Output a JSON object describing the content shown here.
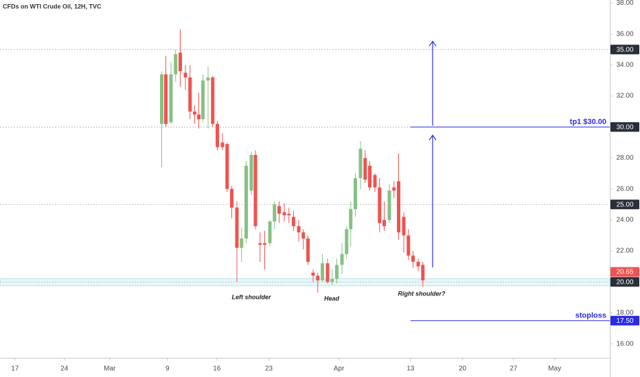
{
  "chart_data": {
    "type": "candlestick",
    "title": "CFDs on WTI Crude Oil, 12H, TVC",
    "up_color": "#86c184",
    "down_color": "#ef5350",
    "x": [
      -1.1,
      -0.3,
      0.7,
      1.6,
      2.5,
      3.5,
      4.4,
      5.3,
      6.1,
      6.9,
      7.9,
      8.8,
      9.7,
      10.7,
      11.6,
      12.5,
      13.5,
      14.4,
      15.3,
      16.3,
      17.1,
      18,
      18.9,
      19.9,
      20.8,
      21.7,
      22.7,
      23.6,
      24.5,
      25.5,
      26.4,
      27.3,
      28.3,
      29.2,
      30.1,
      31.1,
      32,
      32.9,
      33.9,
      34.8,
      35.6,
      36.5,
      37.5,
      38.4,
      39.3,
      40.3,
      41.2,
      42.1,
      43.1,
      44,
      44.9,
      45.9,
      46.8,
      47.7,
      48.7,
      49.6
    ],
    "open": [
      30.2,
      33.4,
      30.3,
      33.4,
      34.8,
      33.5,
      33.2,
      31.0,
      30.8,
      30.5,
      33.0,
      33.2,
      30.2,
      29.0,
      28.9,
      26.0,
      24.8,
      22.2,
      22.8,
      25.9,
      28.2,
      22.5,
      22.5,
      22.5,
      23.9,
      24.9,
      24.5,
      24.4,
      24.2,
      23.6,
      23.2,
      22.8,
      20.6,
      20.4,
      20.1,
      21.2,
      20.0,
      20.2,
      21.1,
      21.8,
      23.4,
      24.7,
      26.7,
      28.0,
      27.5,
      26.9,
      26.1,
      24.0,
      24.0,
      26.1,
      26.5,
      24.2,
      23.0,
      21.7,
      21.3,
      21.1
    ],
    "high": [
      33.6,
      34.6,
      34.2,
      35.0,
      36.3,
      34.0,
      34.0,
      31.4,
      32.2,
      33.4,
      33.9,
      33.3,
      30.4,
      29.6,
      29.0,
      26.2,
      25.2,
      23.5,
      27.8,
      28.4,
      28.5,
      23.2,
      23.3,
      24.0,
      25.2,
      25.2,
      25.1,
      24.8,
      24.6,
      24.0,
      23.4,
      23.0,
      20.8,
      20.6,
      21.8,
      21.5,
      20.8,
      21.5,
      22.5,
      23.6,
      25.2,
      27.0,
      29.1,
      28.5,
      27.8,
      27.0,
      26.7,
      25.2,
      26.3,
      26.5,
      28.3,
      24.5,
      23.4,
      22.0,
      21.5,
      21.3
    ],
    "low": [
      27.4,
      30.0,
      30.2,
      32.9,
      32.6,
      32.4,
      30.5,
      30.2,
      29.9,
      30.3,
      29.9,
      30.0,
      28.5,
      28.5,
      25.8,
      24.1,
      20.0,
      21.3,
      22.5,
      25.6,
      23.4,
      21.3,
      20.8,
      22.3,
      23.4,
      23.8,
      23.9,
      23.8,
      23.3,
      22.6,
      22.1,
      21.1,
      20.0,
      19.3,
      20.0,
      19.9,
      19.8,
      19.9,
      20.5,
      21.5,
      22.3,
      24.2,
      26.0,
      26.4,
      25.9,
      25.8,
      23.2,
      23.3,
      23.8,
      25.4,
      22.7,
      21.9,
      21.4,
      20.9,
      20.7,
      19.7
    ],
    "close": [
      33.4,
      30.2,
      33.4,
      34.7,
      33.6,
      33.2,
      31.0,
      30.8,
      30.5,
      33.0,
      33.2,
      30.2,
      28.7,
      28.7,
      26.0,
      24.8,
      22.2,
      22.8,
      27.5,
      28.2,
      23.6,
      22.4,
      22.4,
      23.9,
      25.0,
      24.4,
      24.3,
      24.3,
      23.6,
      23.2,
      22.8,
      21.3,
      20.4,
      20.1,
      21.2,
      20.0,
      20.2,
      21.1,
      21.8,
      23.4,
      24.7,
      26.7,
      28.6,
      26.6,
      26.1,
      26.1,
      23.8,
      23.6,
      25.9,
      25.9,
      23.2,
      23.0,
      21.7,
      21.3,
      21.0,
      20.1
    ],
    "xlim": [
      -32.5,
      85.9
    ],
    "xticks": [
      {
        "value": -29.6,
        "label": "17"
      },
      {
        "value": -20,
        "label": "24"
      },
      {
        "value": -11.2,
        "label": "Mar"
      },
      {
        "value": 0,
        "label": "9"
      },
      {
        "value": 9.6,
        "label": "16"
      },
      {
        "value": 19.7,
        "label": "23"
      },
      {
        "value": 33.3,
        "label": "Apr"
      },
      {
        "value": 47.2,
        "label": "13"
      },
      {
        "value": 57.3,
        "label": "20"
      },
      {
        "value": 67.2,
        "label": "27"
      },
      {
        "value": 75.2,
        "label": "May"
      }
    ],
    "ylim": [
      15.1,
      38.2
    ],
    "yticks": [
      {
        "value": 16,
        "label": "16.00"
      },
      {
        "value": 18,
        "label": "18.00"
      },
      {
        "value": 22,
        "label": "22.00"
      },
      {
        "value": 24,
        "label": "24.00"
      },
      {
        "value": 26,
        "label": "26.00"
      },
      {
        "value": 28,
        "label": "28.00"
      },
      {
        "value": 32,
        "label": "32.00"
      },
      {
        "value": 34,
        "label": "34.00"
      },
      {
        "value": 36,
        "label": "36.00"
      },
      {
        "value": 38,
        "label": "38.00"
      }
    ],
    "levels": [
      {
        "value": 35,
        "label": "35.00"
      },
      {
        "value": 30,
        "label": "30.00"
      },
      {
        "value": 25,
        "label": "25.00"
      },
      {
        "value": 20,
        "label": "20.00"
      }
    ],
    "zone": {
      "from": 19.75,
      "to": 20.2,
      "color": "#bfe6f0"
    },
    "last_price": {
      "value": 20.65,
      "label": "20.65",
      "color": "#ef5350"
    },
    "targets": [
      {
        "text": "tp1 $30.00",
        "value": 30,
        "from_x": 47.2,
        "color": "#2a2ae8"
      },
      {
        "text": "stoploss",
        "value": 17.5,
        "label": "17.50",
        "from_x": 47.2,
        "color": "#2a2ae8"
      }
    ],
    "arrows": [
      {
        "x": 51.5,
        "from": 20.93,
        "to": 29.47,
        "color": "#2a2ae8"
      },
      {
        "x": 51.5,
        "from": 30.09,
        "to": 35.53,
        "color": "#2a2ae8"
      }
    ],
    "annotations": [
      "Left shoulder",
      "Head",
      "Right shoulder?"
    ]
  }
}
